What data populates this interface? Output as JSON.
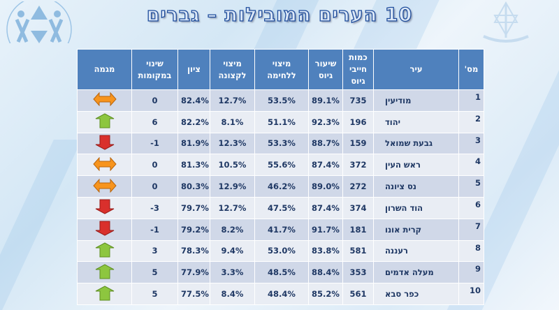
{
  "title": "10 הערים המובילות – גברים",
  "table": {
    "headers": {
      "num": "מס'",
      "city": "עיר",
      "count": "כמות חייבי גיוס",
      "rate": "שיעור גיוס",
      "combat": "מיצוי ללחימה",
      "officers": "מיצוי לקצונה",
      "score": "ציון",
      "change": "שינוי במקומות",
      "trend": "מגמה"
    },
    "rows": [
      {
        "num": "1",
        "city": "מודיעין",
        "count": "735",
        "rate": "89.1%",
        "combat": "53.5%",
        "officers": "12.7%",
        "score": "82.4%",
        "change": "0",
        "trend": "same"
      },
      {
        "num": "2",
        "city": "יהוד",
        "count": "196",
        "rate": "92.3%",
        "combat": "51.1%",
        "officers": "8.1%",
        "score": "82.2%",
        "change": "6",
        "trend": "up"
      },
      {
        "num": "3",
        "city": "גבעת שמואל",
        "count": "159",
        "rate": "88.7%",
        "combat": "53.3%",
        "officers": "12.3%",
        "score": "81.9%",
        "change": "-1",
        "trend": "down"
      },
      {
        "num": "4",
        "city": "ראש העין",
        "count": "372",
        "rate": "87.4%",
        "combat": "55.6%",
        "officers": "10.5%",
        "score": "81.3%",
        "change": "0",
        "trend": "same"
      },
      {
        "num": "5",
        "city": "נס ציונה",
        "count": "272",
        "rate": "89.0%",
        "combat": "46.2%",
        "officers": "12.9%",
        "score": "80.3%",
        "change": "0",
        "trend": "same"
      },
      {
        "num": "6",
        "city": "הוד השרון",
        "count": "374",
        "rate": "87.4%",
        "combat": "47.5%",
        "officers": "12.7%",
        "score": "79.7%",
        "change": "-3",
        "trend": "down"
      },
      {
        "num": "7",
        "city": "קרית אונו",
        "count": "181",
        "rate": "91.7%",
        "combat": "41.7%",
        "officers": "8.2%",
        "score": "79.2%",
        "change": "-1",
        "trend": "down"
      },
      {
        "num": "8",
        "city": "רעננה",
        "count": "581",
        "rate": "83.8%",
        "combat": "53.0%",
        "officers": "9.4%",
        "score": "78.3%",
        "change": "3",
        "trend": "up"
      },
      {
        "num": "9",
        "city": "מעלה אדמים",
        "count": "353",
        "rate": "88.4%",
        "combat": "48.5%",
        "officers": "3.3%",
        "score": "77.9%",
        "change": "5",
        "trend": "up"
      },
      {
        "num": "10",
        "city": "כפר סבא",
        "count": "561",
        "rate": "85.2%",
        "combat": "48.4%",
        "officers": "8.4%",
        "score": "77.5%",
        "change": "5",
        "trend": "up"
      }
    ]
  },
  "colors": {
    "header": "#4f81bd",
    "row_odd": "#d0d8e8",
    "row_even": "#e9edf4",
    "text": "#1f3864",
    "up": "#8dc63f",
    "down": "#d9302c",
    "same": "#f7941d"
  }
}
